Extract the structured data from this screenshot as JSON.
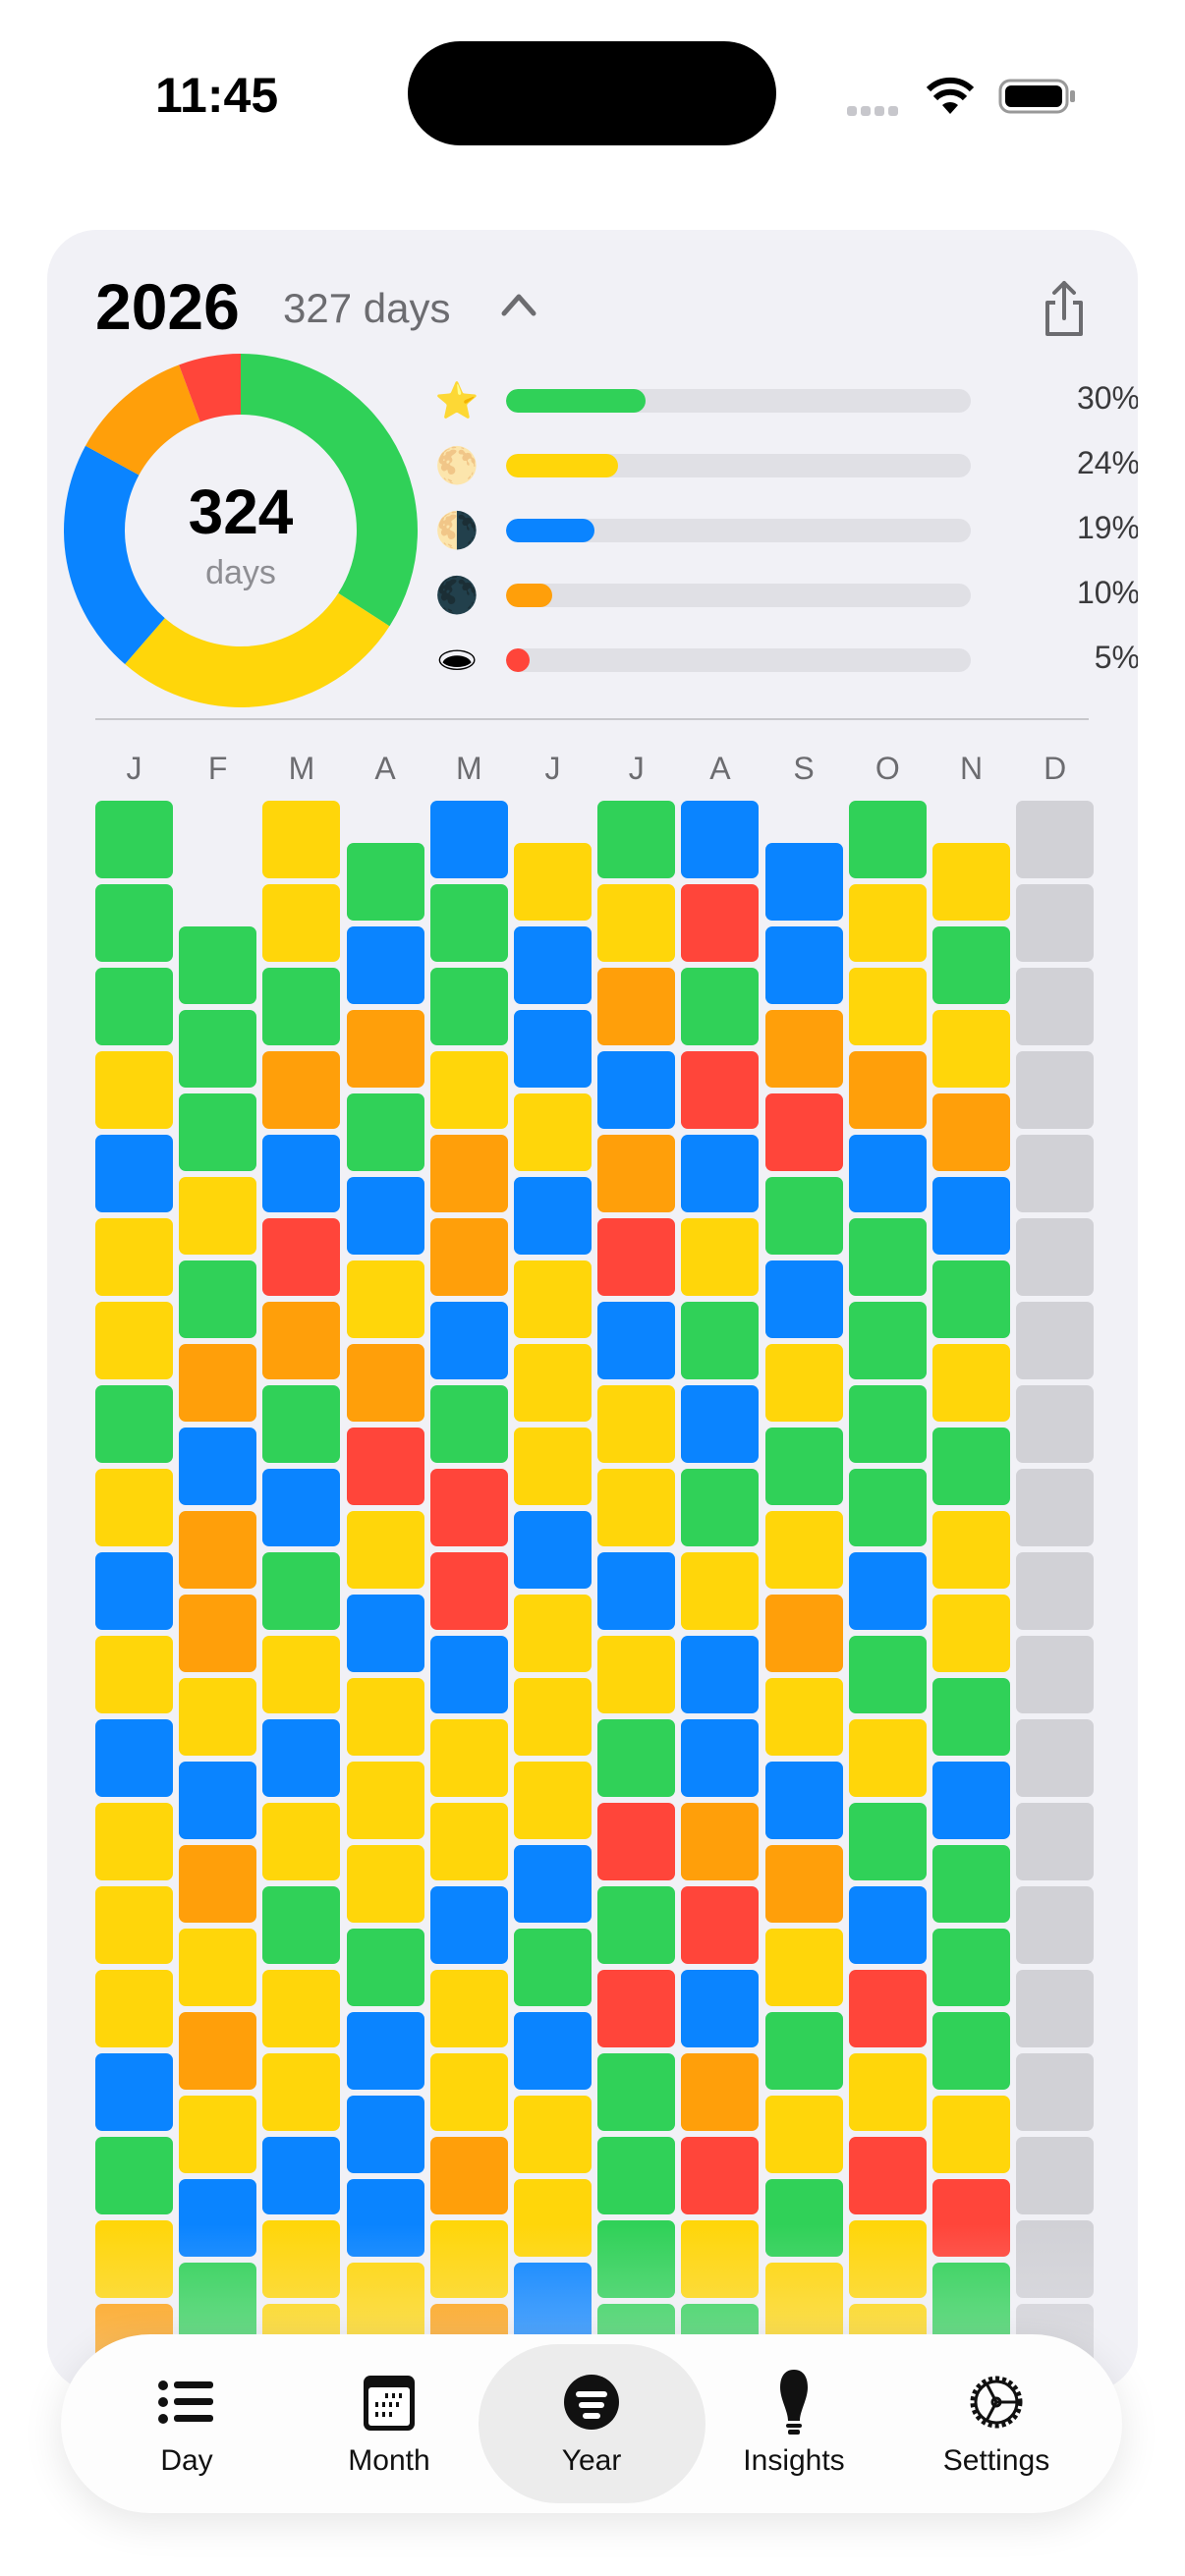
{
  "status_bar": {
    "time": "11:45"
  },
  "header": {
    "year": "2026",
    "days_label": "327 days"
  },
  "donut": {
    "value": "324",
    "label": "days"
  },
  "colors": {
    "G": "#30d158",
    "Y": "#ffd60a",
    "B": "#0a84ff",
    "O": "#ff9f0a",
    "R": "#ff453a",
    "X": "#d1d1d6"
  },
  "moods": [
    {
      "icon": "star-icon",
      "emoji": "⭐",
      "percent": 30,
      "percent_label": "30%",
      "color": "#30d158"
    },
    {
      "icon": "full-moon-icon",
      "emoji": "🌕",
      "percent": 24,
      "percent_label": "24%",
      "color": "#ffd60a"
    },
    {
      "icon": "half-moon-icon",
      "emoji": "🌗",
      "percent": 19,
      "percent_label": "19%",
      "color": "#0a84ff"
    },
    {
      "icon": "new-moon-icon",
      "emoji": "🌑",
      "percent": 10,
      "percent_label": "10%",
      "color": "#ff9f0a"
    },
    {
      "icon": "hole-icon",
      "emoji": "🕳",
      "percent": 5,
      "percent_label": "5%",
      "color": "#ff453a"
    }
  ],
  "months": [
    {
      "label": "J",
      "offset": 0,
      "days": "GGGYBYYGYBYBYYYBGYO"
    },
    {
      "label": "F",
      "offset": 1.5,
      "days": "GGGYGOBOOYBOYOYBG"
    },
    {
      "label": "M",
      "offset": 0,
      "days": "YYGOBROGBGYBYGYYBYY"
    },
    {
      "label": "A",
      "offset": 0.5,
      "days": "GBOGBYORYBYYYGBBBY"
    },
    {
      "label": "M",
      "offset": 0,
      "days": "BGGYOOBGRRBYYBYYOYO"
    },
    {
      "label": "J",
      "offset": 0.5,
      "days": "YBBYBYYYBYYYBGBYYBB"
    },
    {
      "label": "J",
      "offset": 0,
      "days": "GYOBORBYYBYGRGRGGGG"
    },
    {
      "label": "A",
      "offset": 0,
      "days": "BRGRBYGBGYBBORBORYG"
    },
    {
      "label": "S",
      "offset": 0.5,
      "days": "BBORGBYGYOYBOYGYGY"
    },
    {
      "label": "O",
      "offset": 0,
      "days": "GYYOBGGGGBGYGBRYRYY"
    },
    {
      "label": "N",
      "offset": 0.5,
      "days": "YGYOBGYGYYGBGGGYRG"
    },
    {
      "label": "D",
      "offset": 0,
      "days": "XXXXXXXXXXXXXXXXXXX"
    }
  ],
  "tabs": [
    {
      "label": "Day",
      "icon": "list-icon"
    },
    {
      "label": "Month",
      "icon": "calendar-icon"
    },
    {
      "label": "Year",
      "icon": "year-filter-icon",
      "selected": true
    },
    {
      "label": "Insights",
      "icon": "lightbulb-icon"
    },
    {
      "label": "Settings",
      "icon": "gear-icon"
    }
  ]
}
